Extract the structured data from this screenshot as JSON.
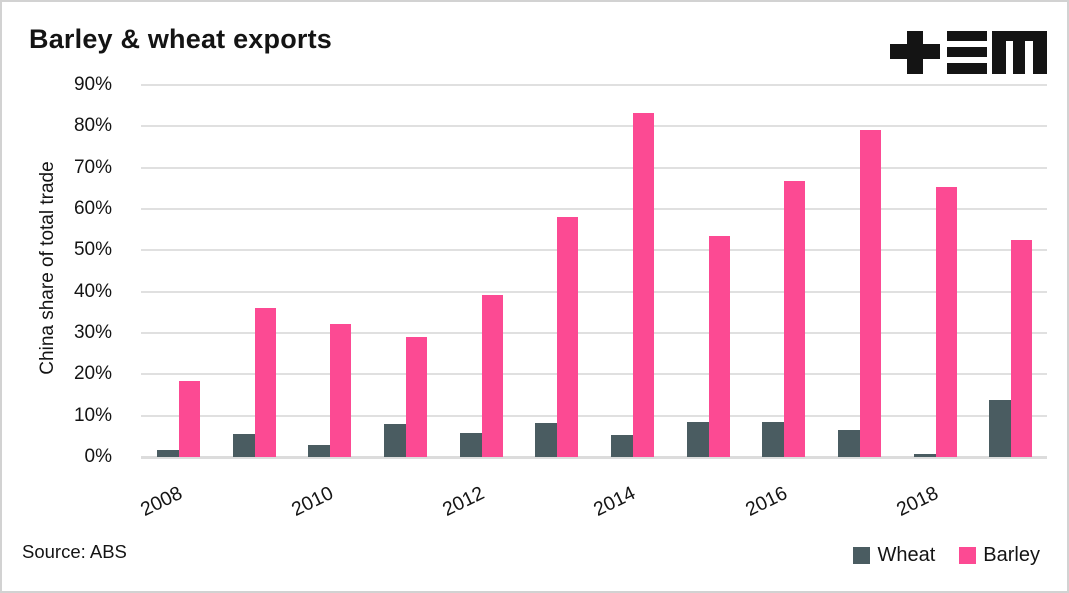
{
  "title": "Barley & wheat exports",
  "source": "Source: ABS",
  "logo_name": "plus-equals-m-logo",
  "colors": {
    "wheat": "#4A5C61",
    "barley": "#FC4A93",
    "grid": "#E0E0E0",
    "text": "#141414",
    "logo": "#141414",
    "background": "#FFFFFF"
  },
  "legend": {
    "position": "bottom-right",
    "items": [
      {
        "label": "Wheat",
        "color": "#4A5C61"
      },
      {
        "label": "Barley",
        "color": "#FC4A93"
      }
    ]
  },
  "chart_data": {
    "type": "bar",
    "title": "Barley & wheat exports",
    "xlabel": "",
    "ylabel": "China share of total trade",
    "ylim": [
      0,
      90
    ],
    "ytick_step": 10,
    "ytick_labels": [
      "0%",
      "10%",
      "20%",
      "30%",
      "40%",
      "50%",
      "60%",
      "70%",
      "80%",
      "90%"
    ],
    "grid": true,
    "legend_position": "bottom-right",
    "categories": [
      "2008",
      "2009",
      "2010",
      "2011",
      "2012",
      "2013",
      "2014",
      "2015",
      "2016",
      "2017",
      "2018",
      "2019"
    ],
    "xtick_shown_indices": [
      0,
      2,
      4,
      6,
      8,
      10
    ],
    "xtick_labels": [
      "2008",
      "2010",
      "2012",
      "2014",
      "2016",
      "2018"
    ],
    "series": [
      {
        "name": "Wheat",
        "color": "#4A5C61",
        "values": [
          1.6,
          5.5,
          2.8,
          8.1,
          5.7,
          8.3,
          5.4,
          8.5,
          8.4,
          6.6,
          0.8,
          13.9
        ]
      },
      {
        "name": "Barley",
        "color": "#FC4A93",
        "values": [
          18.5,
          36.0,
          32.2,
          29.0,
          39.2,
          58.0,
          83.2,
          53.5,
          66.8,
          79.0,
          65.3,
          52.4
        ]
      }
    ]
  }
}
